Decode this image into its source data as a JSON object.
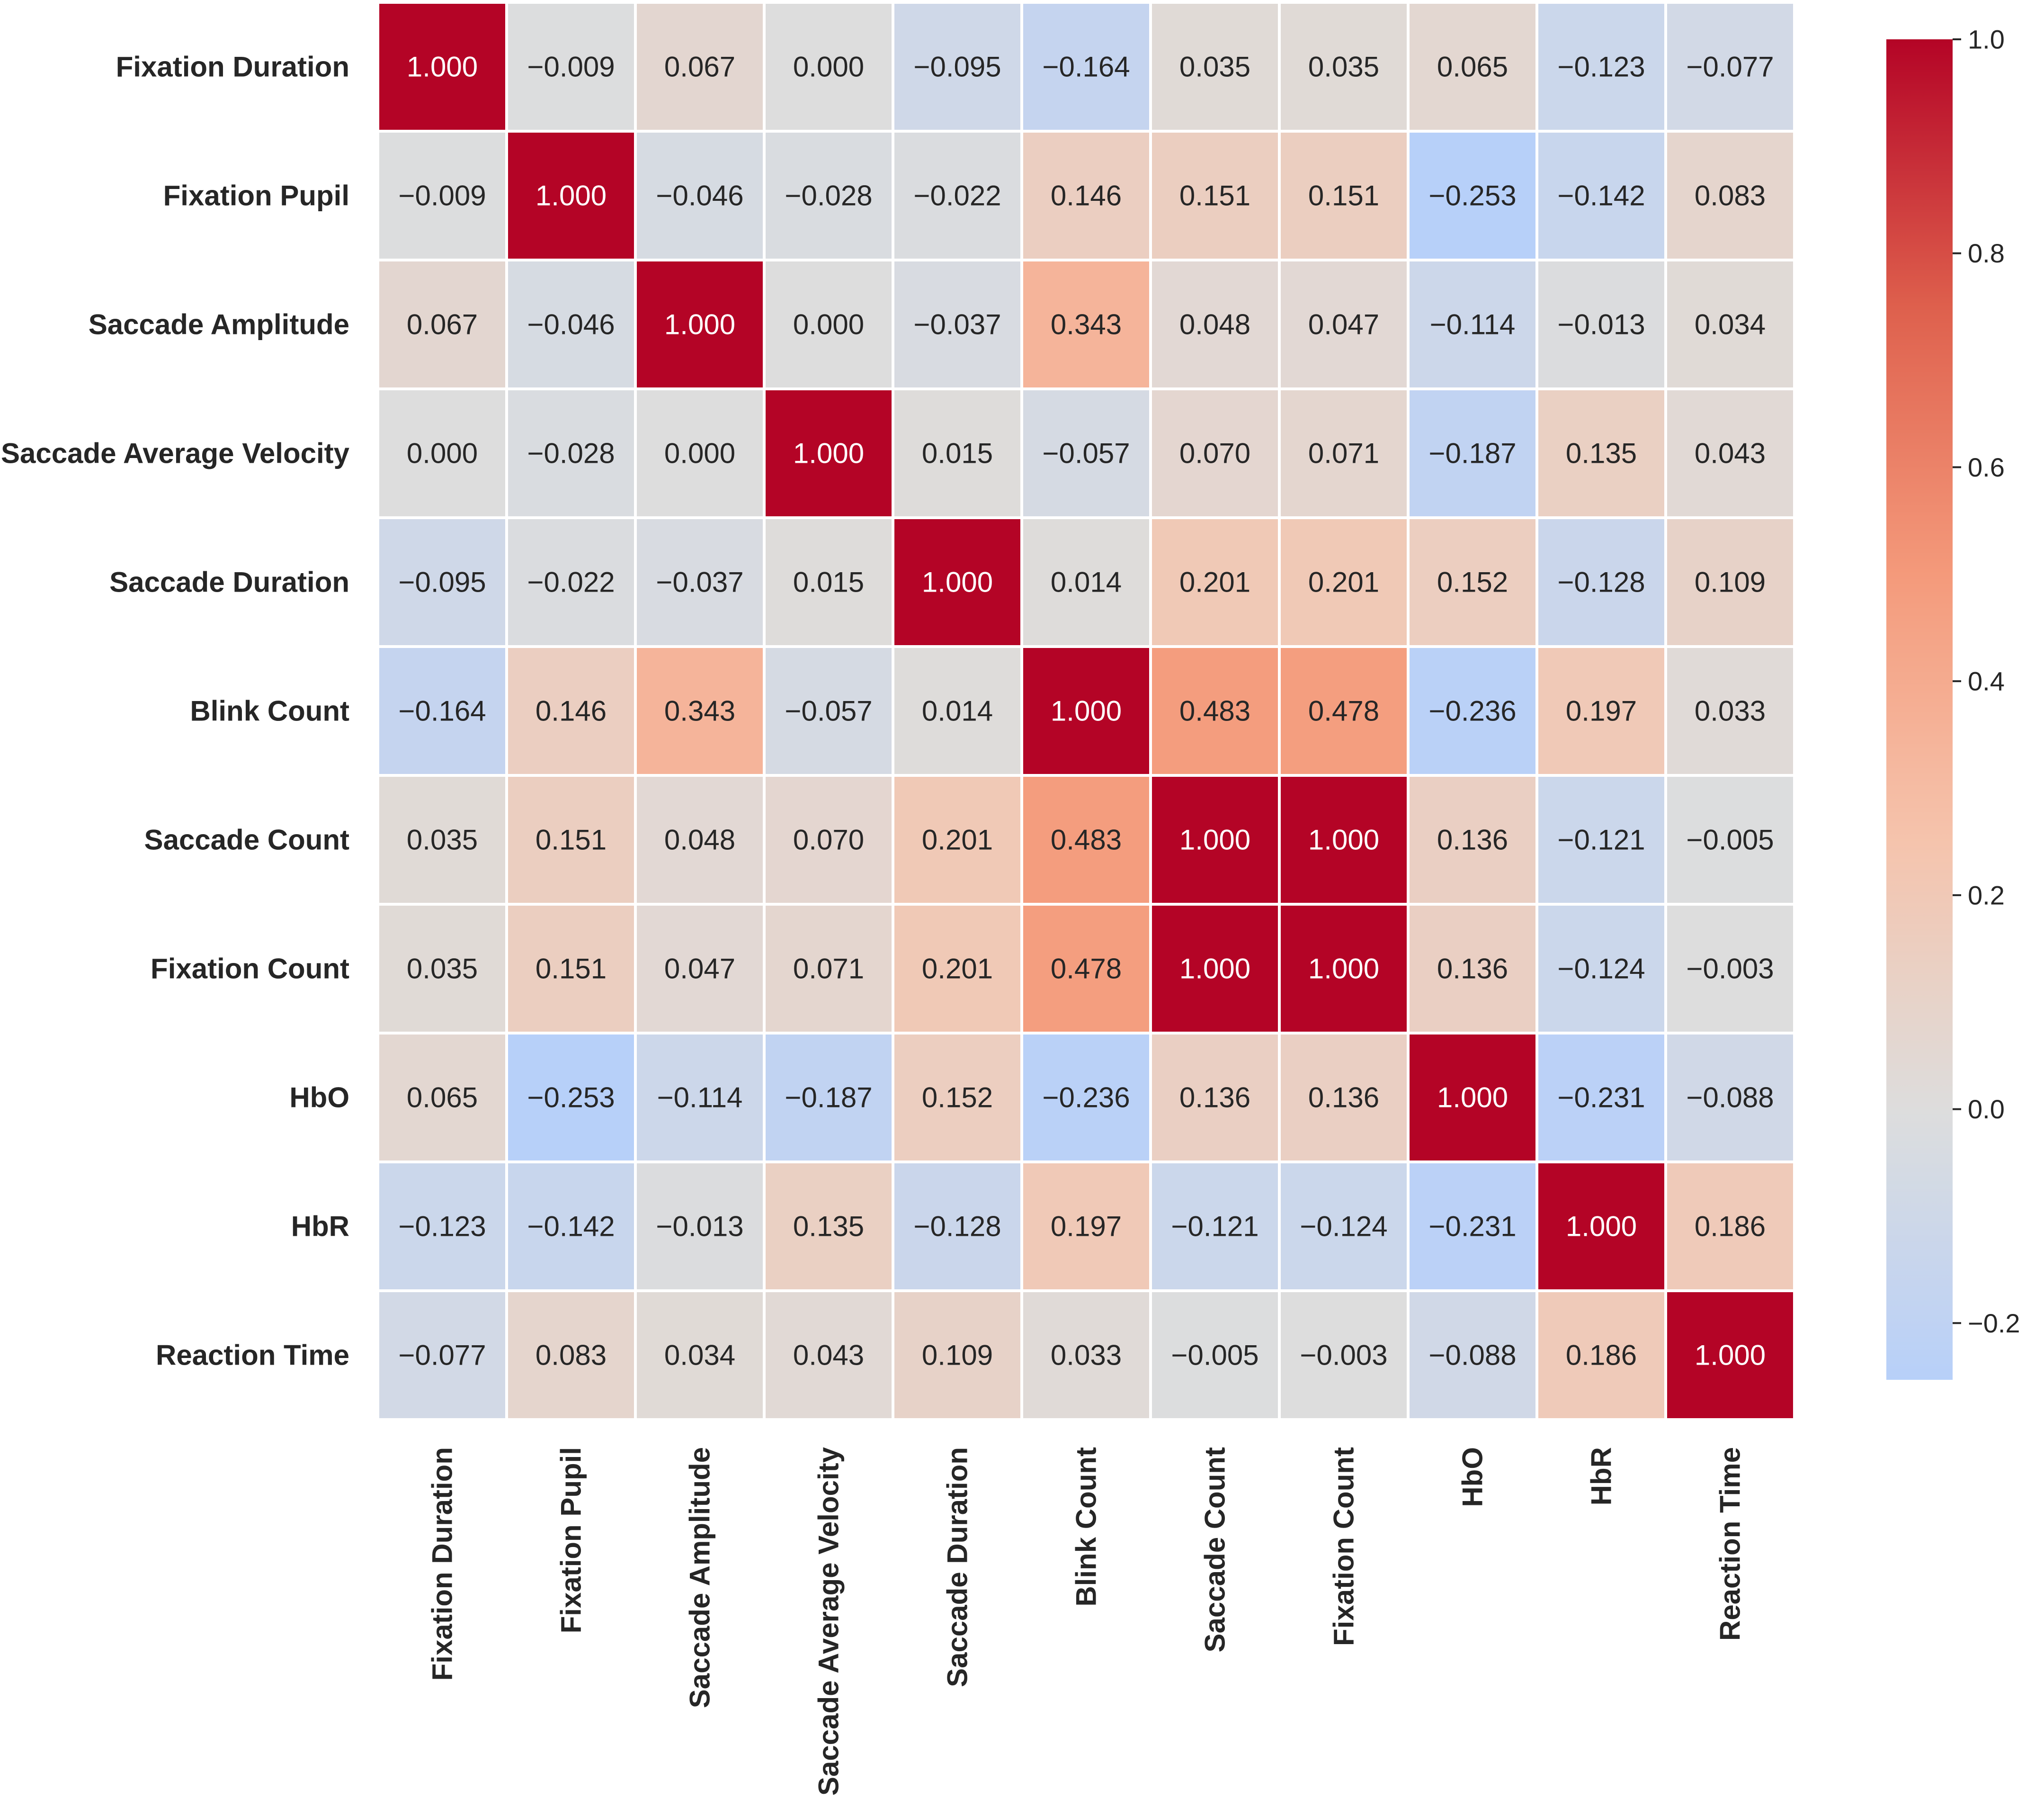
{
  "chart_data": {
    "type": "heatmap",
    "title": "",
    "colormap": "coolwarm",
    "center": 0,
    "colorbar_range": [
      -0.253,
      1.0
    ],
    "colorbar_ticks": [
      "1.0",
      "0.8",
      "0.6",
      "0.4",
      "0.2",
      "0.0",
      "−0.2"
    ],
    "colorbar_tick_values": [
      1.0,
      0.8,
      0.6,
      0.4,
      0.2,
      0.0,
      -0.2
    ],
    "labels": [
      "Fixation Duration",
      "Fixation Pupil",
      "Saccade Amplitude",
      "Saccade Average Velocity",
      "Saccade Duration",
      "Blink Count",
      "Saccade Count",
      "Fixation Count",
      "HbO",
      "HbR",
      "Reaction Time"
    ],
    "matrix": [
      [
        1.0,
        -0.009,
        0.067,
        0.0,
        -0.095,
        -0.164,
        0.035,
        0.035,
        0.065,
        -0.123,
        -0.077
      ],
      [
        -0.009,
        1.0,
        -0.046,
        -0.028,
        -0.022,
        0.146,
        0.151,
        0.151,
        -0.253,
        -0.142,
        0.083
      ],
      [
        0.067,
        -0.046,
        1.0,
        0.0,
        -0.037,
        0.343,
        0.048,
        0.047,
        -0.114,
        -0.013,
        0.034
      ],
      [
        0.0,
        -0.028,
        0.0,
        1.0,
        0.015,
        -0.057,
        0.07,
        0.071,
        -0.187,
        0.135,
        0.043
      ],
      [
        -0.095,
        -0.022,
        -0.037,
        0.015,
        1.0,
        0.014,
        0.201,
        0.201,
        0.152,
        -0.128,
        0.109
      ],
      [
        -0.164,
        0.146,
        0.343,
        -0.057,
        0.014,
        1.0,
        0.483,
        0.478,
        -0.236,
        0.197,
        0.033
      ],
      [
        0.035,
        0.151,
        0.048,
        0.07,
        0.201,
        0.483,
        1.0,
        1.0,
        0.136,
        -0.121,
        -0.005
      ],
      [
        0.035,
        0.151,
        0.047,
        0.071,
        0.201,
        0.478,
        1.0,
        1.0,
        0.136,
        -0.124,
        -0.003
      ],
      [
        0.065,
        -0.253,
        -0.114,
        -0.187,
        0.152,
        -0.236,
        0.136,
        0.136,
        1.0,
        -0.231,
        -0.088
      ],
      [
        -0.123,
        -0.142,
        -0.013,
        0.135,
        -0.128,
        0.197,
        -0.121,
        -0.124,
        -0.231,
        1.0,
        0.186
      ],
      [
        -0.077,
        0.083,
        0.034,
        0.043,
        0.109,
        0.033,
        -0.005,
        -0.003,
        -0.088,
        0.186,
        1.0
      ]
    ]
  }
}
